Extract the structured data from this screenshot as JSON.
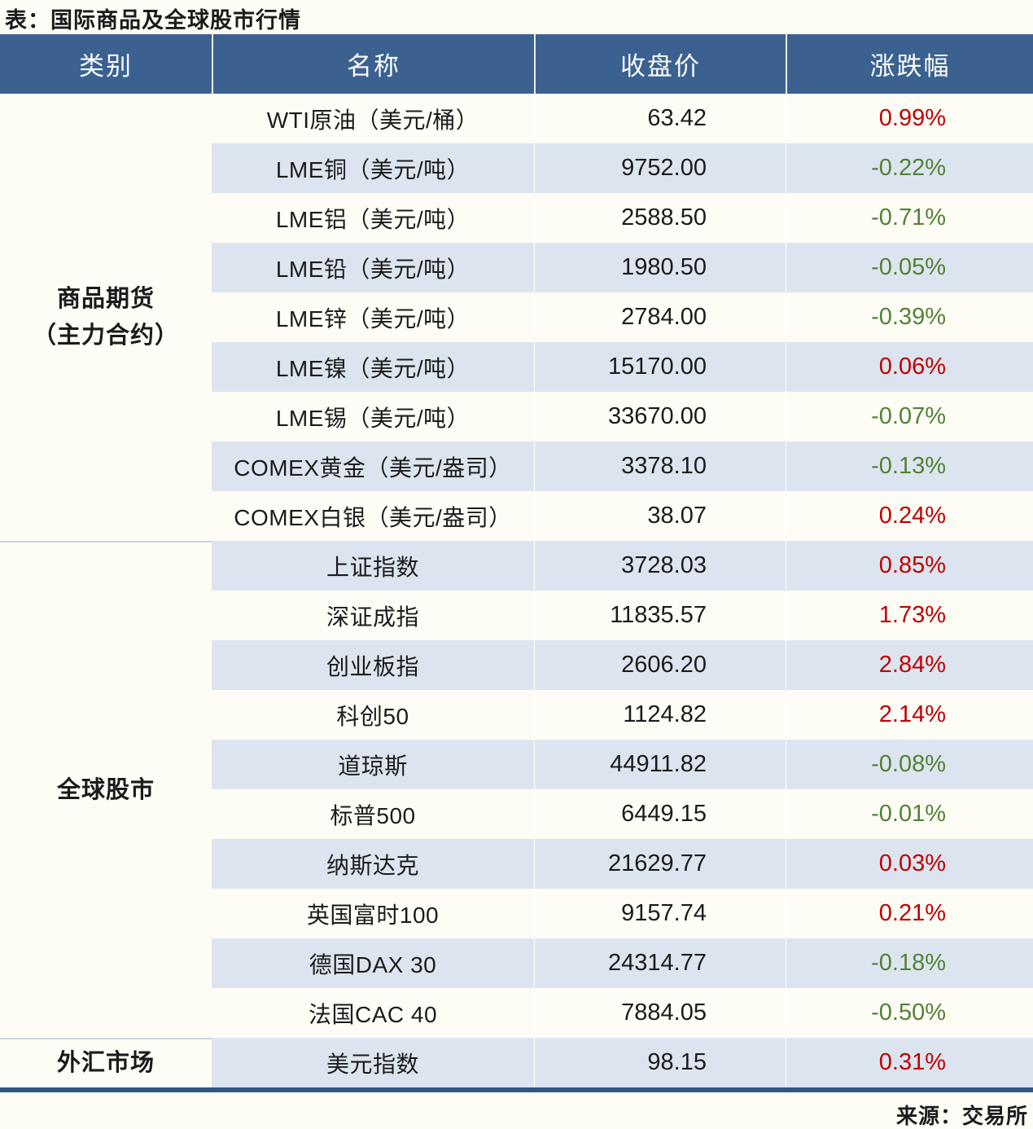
{
  "title": "表：国际商品及全球股市行情",
  "source": "来源：交易所",
  "colors": {
    "header_bg": "#3A6190",
    "stripe_row_bg": "#DCE5EF",
    "up_red": "#C00000",
    "down_green": "#538135",
    "bottom_border": "#305880",
    "group_divider": "#C9D4E2"
  },
  "chart_data": {
    "type": "table",
    "title": "表：国际商品及全球股市行情",
    "columns": [
      "类别",
      "名称",
      "收盘价",
      "涨跌幅"
    ],
    "groups": [
      {
        "category": "商品期货（主力合约）",
        "category_lines": [
          "商品期货",
          "（主力合约）"
        ],
        "rows": [
          {
            "name": "WTI原油（美元/桶）",
            "close": "63.42",
            "change": "0.99%",
            "dir": "up"
          },
          {
            "name": "LME铜（美元/吨）",
            "close": "9752.00",
            "change": "-0.22%",
            "dir": "down"
          },
          {
            "name": "LME铝（美元/吨）",
            "close": "2588.50",
            "change": "-0.71%",
            "dir": "down"
          },
          {
            "name": "LME铅（美元/吨）",
            "close": "1980.50",
            "change": "-0.05%",
            "dir": "down"
          },
          {
            "name": "LME锌（美元/吨）",
            "close": "2784.00",
            "change": "-0.39%",
            "dir": "down"
          },
          {
            "name": "LME镍（美元/吨）",
            "close": "15170.00",
            "change": "0.06%",
            "dir": "up"
          },
          {
            "name": "LME锡（美元/吨）",
            "close": "33670.00",
            "change": "-0.07%",
            "dir": "down"
          },
          {
            "name": "COMEX黄金（美元/盎司）",
            "close": "3378.10",
            "change": "-0.13%",
            "dir": "down"
          },
          {
            "name": "COMEX白银（美元/盎司）",
            "close": "38.07",
            "change": "0.24%",
            "dir": "up"
          }
        ]
      },
      {
        "category": "全球股市",
        "category_lines": [
          "全球股市"
        ],
        "rows": [
          {
            "name": "上证指数",
            "close": "3728.03",
            "change": "0.85%",
            "dir": "up"
          },
          {
            "name": "深证成指",
            "close": "11835.57",
            "change": "1.73%",
            "dir": "up"
          },
          {
            "name": "创业板指",
            "close": "2606.20",
            "change": "2.84%",
            "dir": "up"
          },
          {
            "name": "科创50",
            "close": "1124.82",
            "change": "2.14%",
            "dir": "up"
          },
          {
            "name": "道琼斯",
            "close": "44911.82",
            "change": "-0.08%",
            "dir": "down"
          },
          {
            "name": "标普500",
            "close": "6449.15",
            "change": "-0.01%",
            "dir": "down"
          },
          {
            "name": "纳斯达克",
            "close": "21629.77",
            "change": "0.03%",
            "dir": "up"
          },
          {
            "name": "英国富时100",
            "close": "9157.74",
            "change": "0.21%",
            "dir": "up"
          },
          {
            "name": "德国DAX 30",
            "close": "24314.77",
            "change": "-0.18%",
            "dir": "down"
          },
          {
            "name": "法国CAC 40",
            "close": "7884.05",
            "change": "-0.50%",
            "dir": "down"
          }
        ]
      },
      {
        "category": "外汇市场",
        "category_lines": [
          "外汇市场"
        ],
        "rows": [
          {
            "name": "美元指数",
            "close": "98.15",
            "change": "0.31%",
            "dir": "up"
          }
        ]
      }
    ]
  }
}
